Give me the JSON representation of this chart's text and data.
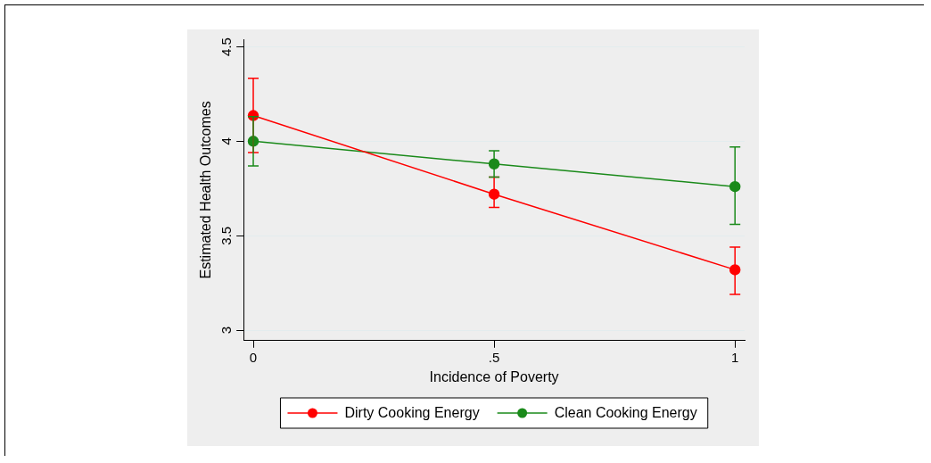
{
  "chart_data": {
    "type": "line",
    "xlabel": "Incidence of Poverty",
    "ylabel": "Estimated Health Outcomes",
    "x": [
      0,
      0.5,
      1
    ],
    "series": [
      {
        "name": "Dirty Cooking Energy",
        "color": "#ff0000",
        "values": [
          4.136,
          3.72,
          3.32
        ],
        "errors": [
          [
            3.94,
            4.333
          ],
          [
            3.65,
            3.81
          ],
          [
            3.19,
            3.44
          ]
        ]
      },
      {
        "name": "Clean Cooking Energy",
        "color": "#1a8a1a",
        "values": [
          4.0,
          3.88,
          3.76
        ],
        "errors": [
          [
            3.87,
            4.13
          ],
          [
            3.81,
            3.95
          ],
          [
            3.56,
            3.97
          ]
        ]
      }
    ],
    "xlim": [
      -0.02,
      1.02
    ],
    "xticks": [
      0,
      {
        "value": 0.5,
        "label": ".5"
      },
      1
    ],
    "ylim": [
      2.945,
      4.54
    ],
    "yticks": [
      3,
      3.5,
      4,
      4.5
    ],
    "grid": "y",
    "legend": "bottom",
    "marker": "circle",
    "line_style": "solid"
  }
}
